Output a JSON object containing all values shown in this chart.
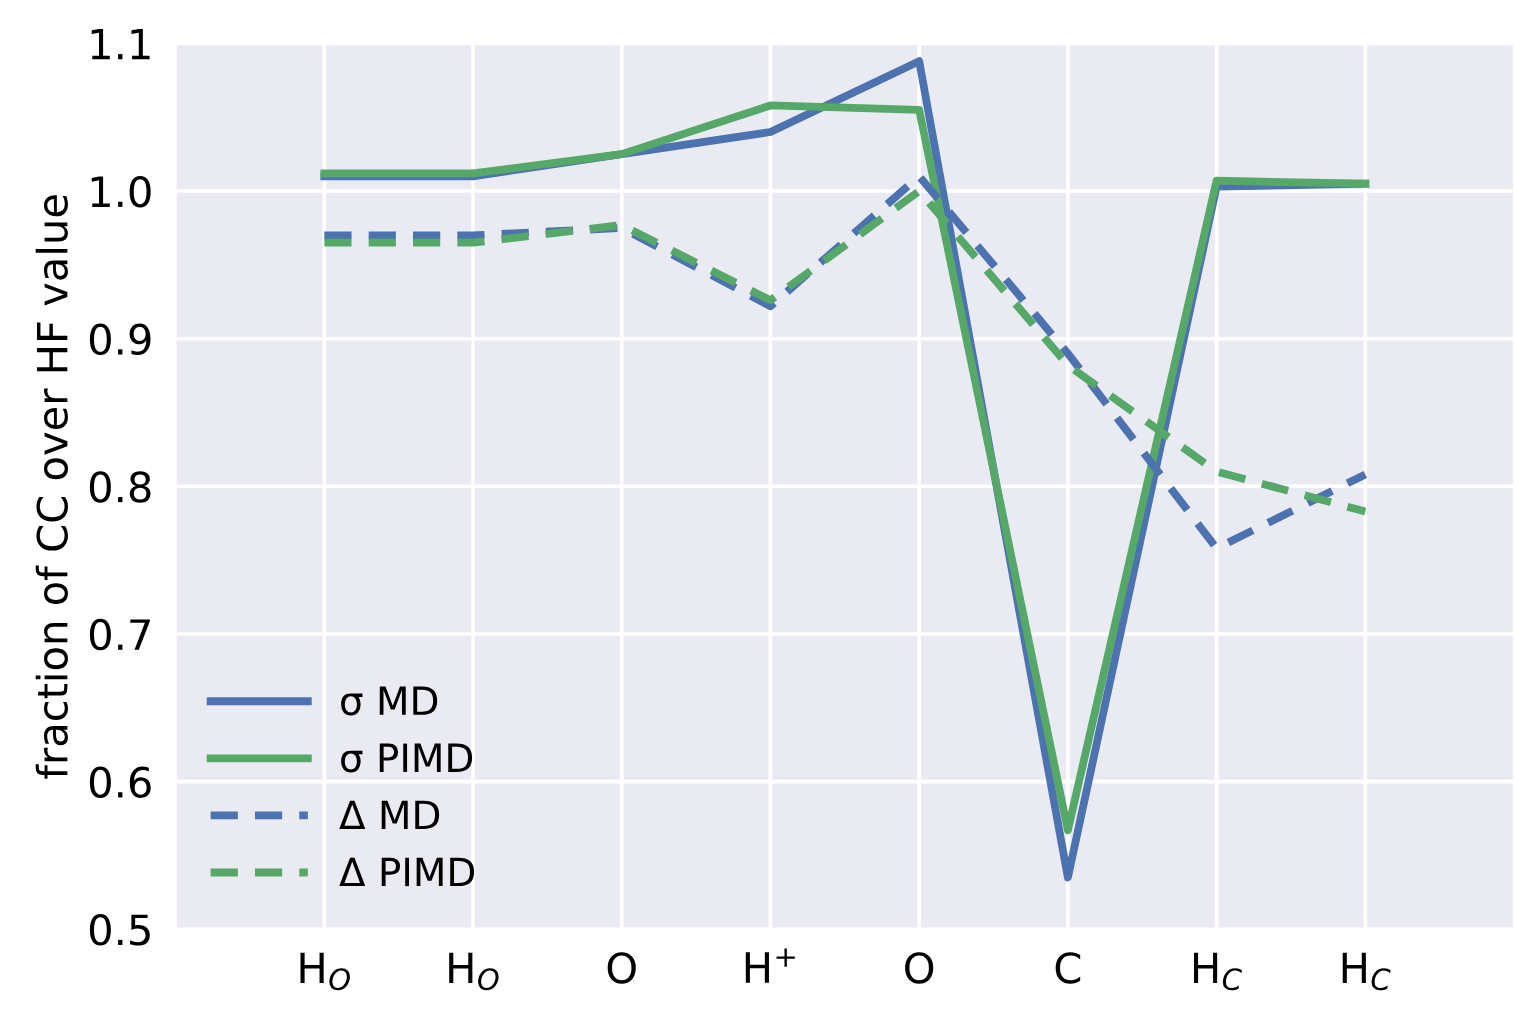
{
  "chart_data": {
    "type": "line",
    "ylabel": "fraction of CC over HF value",
    "categories": [
      "H$_{O}$",
      "H$_{O}$",
      "O",
      "H$^{+}$",
      "O",
      "C",
      "H$_{C}$",
      "H$_{C}$"
    ],
    "series": [
      {
        "name": "σ MD",
        "color": "#4c72b0",
        "line_style": "solid",
        "values": [
          1.01,
          1.01,
          1.025,
          1.04,
          1.088,
          0.535,
          1.003,
          1.005
        ]
      },
      {
        "name": "σ PIMD",
        "color": "#55a868",
        "line_style": "solid",
        "values": [
          1.012,
          1.012,
          1.025,
          1.058,
          1.055,
          0.567,
          1.007,
          1.005
        ]
      },
      {
        "name": "Δ MD",
        "color": "#4c72b0",
        "line_style": "dashed",
        "values": [
          0.97,
          0.97,
          0.975,
          0.922,
          1.01,
          0.89,
          0.758,
          0.808
        ]
      },
      {
        "name": "Δ PIMD",
        "color": "#55a868",
        "line_style": "dashed",
        "values": [
          0.965,
          0.965,
          0.977,
          0.926,
          1.0,
          0.882,
          0.81,
          0.783
        ]
      }
    ],
    "ylim": [
      0.5,
      1.1
    ],
    "yticks": [
      0.5,
      0.6,
      0.7,
      0.8,
      0.9,
      {
        "value": 1.0,
        "label": "1.0"
      },
      1.1
    ],
    "grid": true,
    "legend": "bottom left",
    "marker": "none"
  }
}
